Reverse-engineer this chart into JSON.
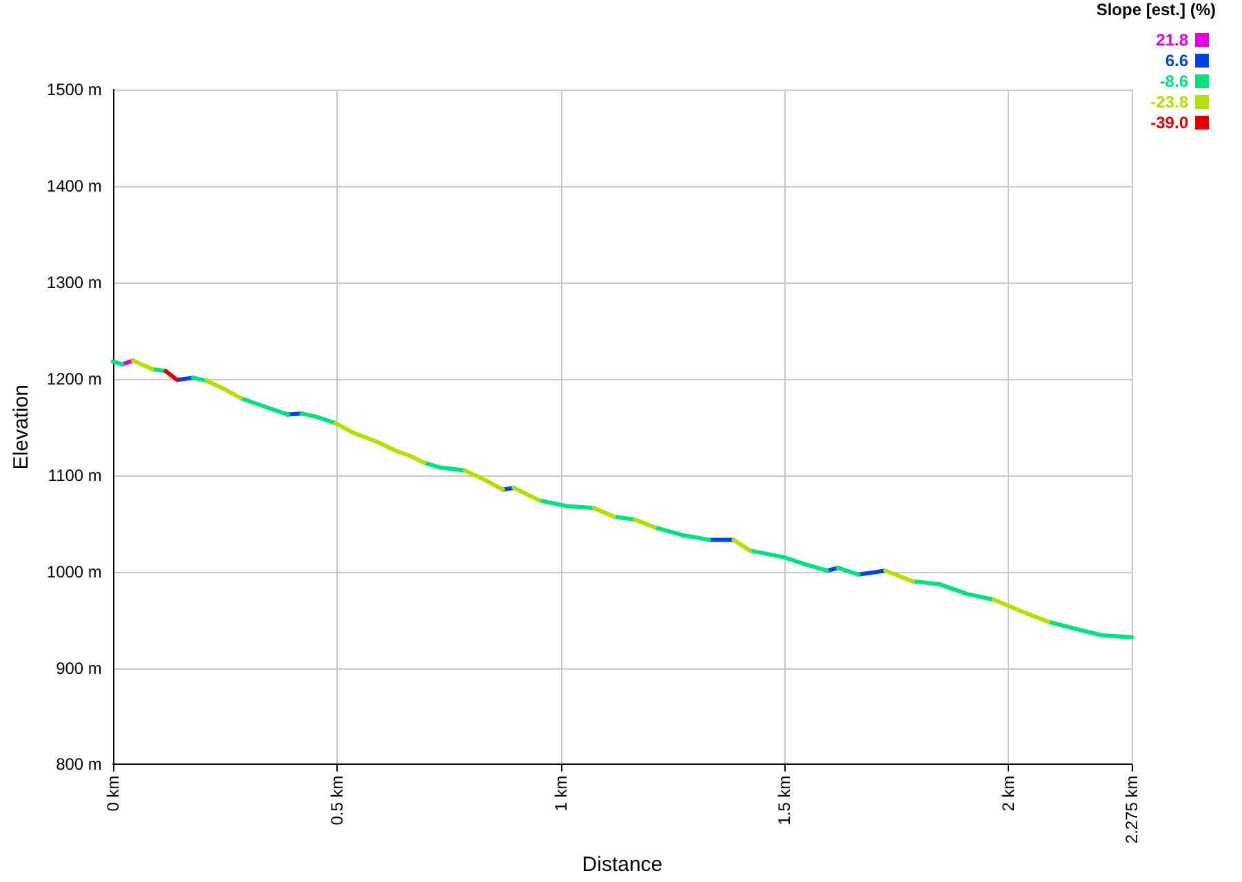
{
  "chart_data": {
    "type": "line",
    "xlabel": "Distance",
    "ylabel": "Elevation",
    "legend_title": "Slope [est.] (%)",
    "series": [
      {
        "name": "21.8",
        "color": "#e000e0",
        "x": [
          0.021,
          0.045
        ],
        "values": [
          1215,
          1219
        ]
      },
      {
        "name": "6.6",
        "color": "#0044dd",
        "x": [
          0.143,
          0.179,
          null,
          0.391,
          0.421,
          null,
          0.871,
          0.895,
          null,
          1.331,
          1.386,
          null,
          1.595,
          1.619,
          null,
          1.665,
          1.725
        ],
        "values": [
          1199,
          1201,
          null,
          1163,
          1164,
          null,
          1085,
          1087,
          null,
          1033,
          1033,
          null,
          1001,
          1004,
          null,
          997,
          1001
        ]
      },
      {
        "name": "-8.6",
        "color": "#00e080",
        "x": [
          0,
          0.021,
          null,
          0.088,
          0.118,
          null,
          0.179,
          0.209,
          null,
          0.285,
          0.346,
          0.391,
          null,
          0.421,
          0.452,
          0.497,
          null,
          0.695,
          0.731,
          0.786,
          null,
          0.952,
          1.013,
          1.074,
          null,
          1.119,
          1.165,
          null,
          1.21,
          1.271,
          1.331,
          null,
          1.422,
          1.498,
          1.543,
          1.595,
          null,
          1.619,
          1.665,
          null,
          1.786,
          1.846,
          1.907,
          1.967,
          null,
          2.089,
          2.164,
          2.209,
          2.275
        ],
        "values": [
          1218,
          1215,
          null,
          1210,
          1208,
          null,
          1201,
          1198,
          null,
          1180,
          1170,
          1163,
          null,
          1164,
          1161,
          1154,
          null,
          1113,
          1108,
          1105,
          null,
          1074,
          1068,
          1066,
          null,
          1057,
          1054,
          null,
          1046,
          1038,
          1033,
          null,
          1022,
          1015,
          1008,
          1001,
          null,
          1004,
          997,
          null,
          990,
          987,
          977,
          971,
          null,
          948,
          939,
          934,
          932
        ]
      },
      {
        "name": "-23.8",
        "color": "#b0e000",
        "x": [
          0.045,
          0.088,
          null,
          0.209,
          0.255,
          0.285,
          null,
          0.497,
          0.537,
          0.588,
          0.634,
          0.664,
          0.695,
          null,
          0.786,
          0.831,
          0.871,
          null,
          0.895,
          0.952,
          null,
          1.074,
          1.119,
          null,
          1.165,
          1.21,
          null,
          1.386,
          1.422,
          null,
          1.725,
          1.786,
          null,
          1.967,
          2.028,
          2.089
        ],
        "values": [
          1219,
          1210,
          null,
          1198,
          1188,
          1180,
          null,
          1154,
          1144,
          1135,
          1125,
          1120,
          1113,
          null,
          1105,
          1095,
          1085,
          null,
          1087,
          1074,
          null,
          1066,
          1057,
          null,
          1054,
          1046,
          null,
          1033,
          1022,
          null,
          1001,
          990,
          null,
          971,
          959,
          948
        ]
      },
      {
        "name": "-39.0",
        "color": "#e00000",
        "x": [
          0.118,
          0.143
        ],
        "values": [
          1208,
          1199
        ]
      }
    ],
    "xlim": [
      0,
      2.275
    ],
    "xticks": [
      {
        "value": 0,
        "label": "0 km"
      },
      {
        "value": 0.5,
        "label": "0.5 km"
      },
      {
        "value": 1,
        "label": "1 km"
      },
      {
        "value": 1.5,
        "label": "1.5 km"
      },
      {
        "value": 2,
        "label": "2 km"
      },
      {
        "value": 2.275,
        "label": "2.275 km"
      }
    ],
    "ylim": [
      800,
      1500
    ],
    "yticks": [
      {
        "value": 800,
        "label": "800 m"
      },
      {
        "value": 900,
        "label": "900 m"
      },
      {
        "value": 1000,
        "label": "1000 m"
      },
      {
        "value": 1100,
        "label": "1100 m"
      },
      {
        "value": 1200,
        "label": "1200 m"
      },
      {
        "value": 1300,
        "label": "1300 m"
      },
      {
        "value": 1400,
        "label": "1400 m"
      },
      {
        "value": 1500,
        "label": "1500 m"
      }
    ],
    "grid": true,
    "marker": "none",
    "legend": "top right"
  }
}
